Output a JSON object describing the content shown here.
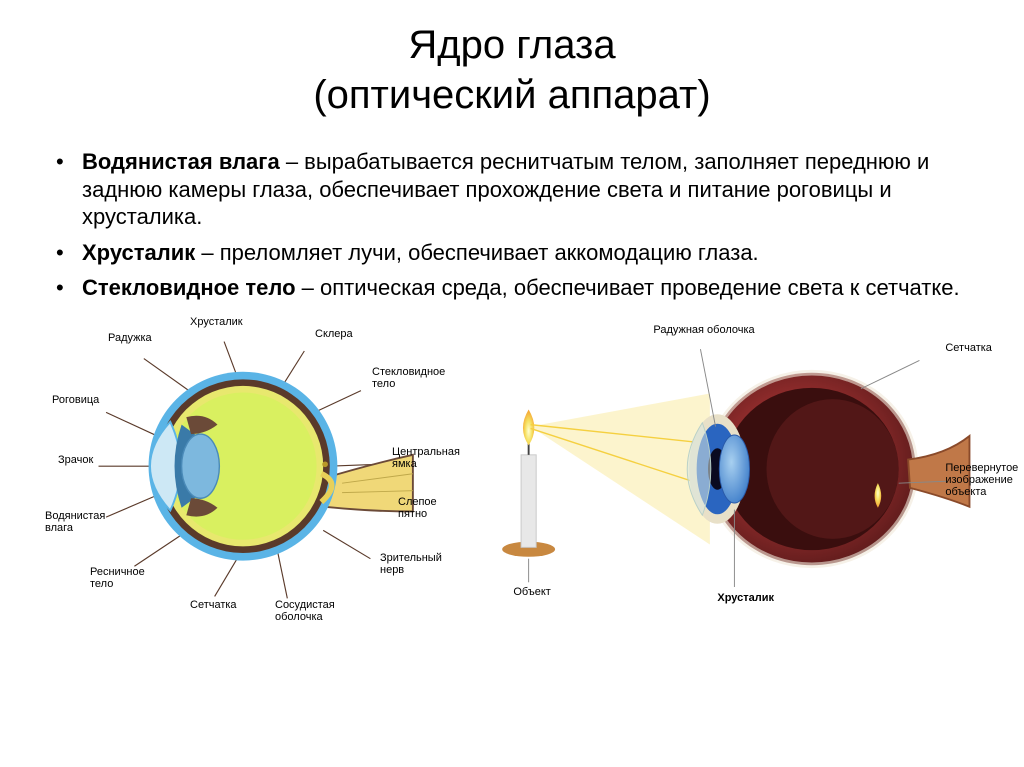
{
  "title_line1": "Ядро глаза",
  "title_line2": "(оптический аппарат)",
  "bullets": [
    {
      "term": "Водянистая влага",
      "rest": " – вырабатывается реснитчатым телом, заполняет переднюю и заднюю камеры глаза, обеспечивает прохождение света и питание роговицы и хрусталика."
    },
    {
      "term": "Хрусталик",
      "rest": " – преломляет лучи, обеспечивает аккомодацию глаза."
    },
    {
      "term": "Стекловидное тело",
      "rest": " – оптическая среда, обеспечивает проведение света к сетчатке."
    }
  ],
  "left_diagram": {
    "type": "anatomical-diagram",
    "labels": {
      "raduzhka": "Радужка",
      "khrustalik": "Хрусталик",
      "sklera": "Склера",
      "steklovidnoe": "Стекловидное\nтело",
      "rogovitsa": "Роговица",
      "tsentralnaya": "Центральная\nямка",
      "zrachok": "Зрачок",
      "slepoe": "Слепое\nпятно",
      "vodyanistaya": "Водянистая\nвлага",
      "zritelnyi": "Зрительный\nнерв",
      "resnichnoe": "Ресничное\nтело",
      "setchatka": "Сетчатка",
      "sosudistaya": "Сосудистая\nоболочка"
    },
    "colors": {
      "sclera_outer": "#5ab4e6",
      "choroid": "#5a3a2a",
      "retina": "#e8e86e",
      "vitreous": "#d9f060",
      "cornea": "#cde8f5",
      "iris": "#3a7aa8",
      "lens": "#7db8de",
      "ciliary": "#6b4a38",
      "nerve": "#f0d878",
      "leader": "#5a3a2a"
    }
  },
  "right_diagram": {
    "type": "optical-diagram",
    "labels": {
      "raduzhnaya": "Радужная оболочка",
      "setchatka": "Сетчатка",
      "perevernutoe": "Перевернутое\nизображение\nобъекта",
      "obekt": "Объект",
      "khrustalik": "Хрусталик"
    },
    "colors": {
      "eye_body": "#8b2a2a",
      "eye_body_light": "#b84040",
      "background_gradient_in": "#f0e8d8",
      "iris_outer": "#2a65c0",
      "lens": "#5a9be0",
      "cornea": "#d8e8e0",
      "ray": "#f5e070",
      "flame_outer": "#f5a030",
      "flame_inner": "#f5e060",
      "candle": "#e8e8e8",
      "holder": "#c88840",
      "leader": "#888888"
    }
  }
}
